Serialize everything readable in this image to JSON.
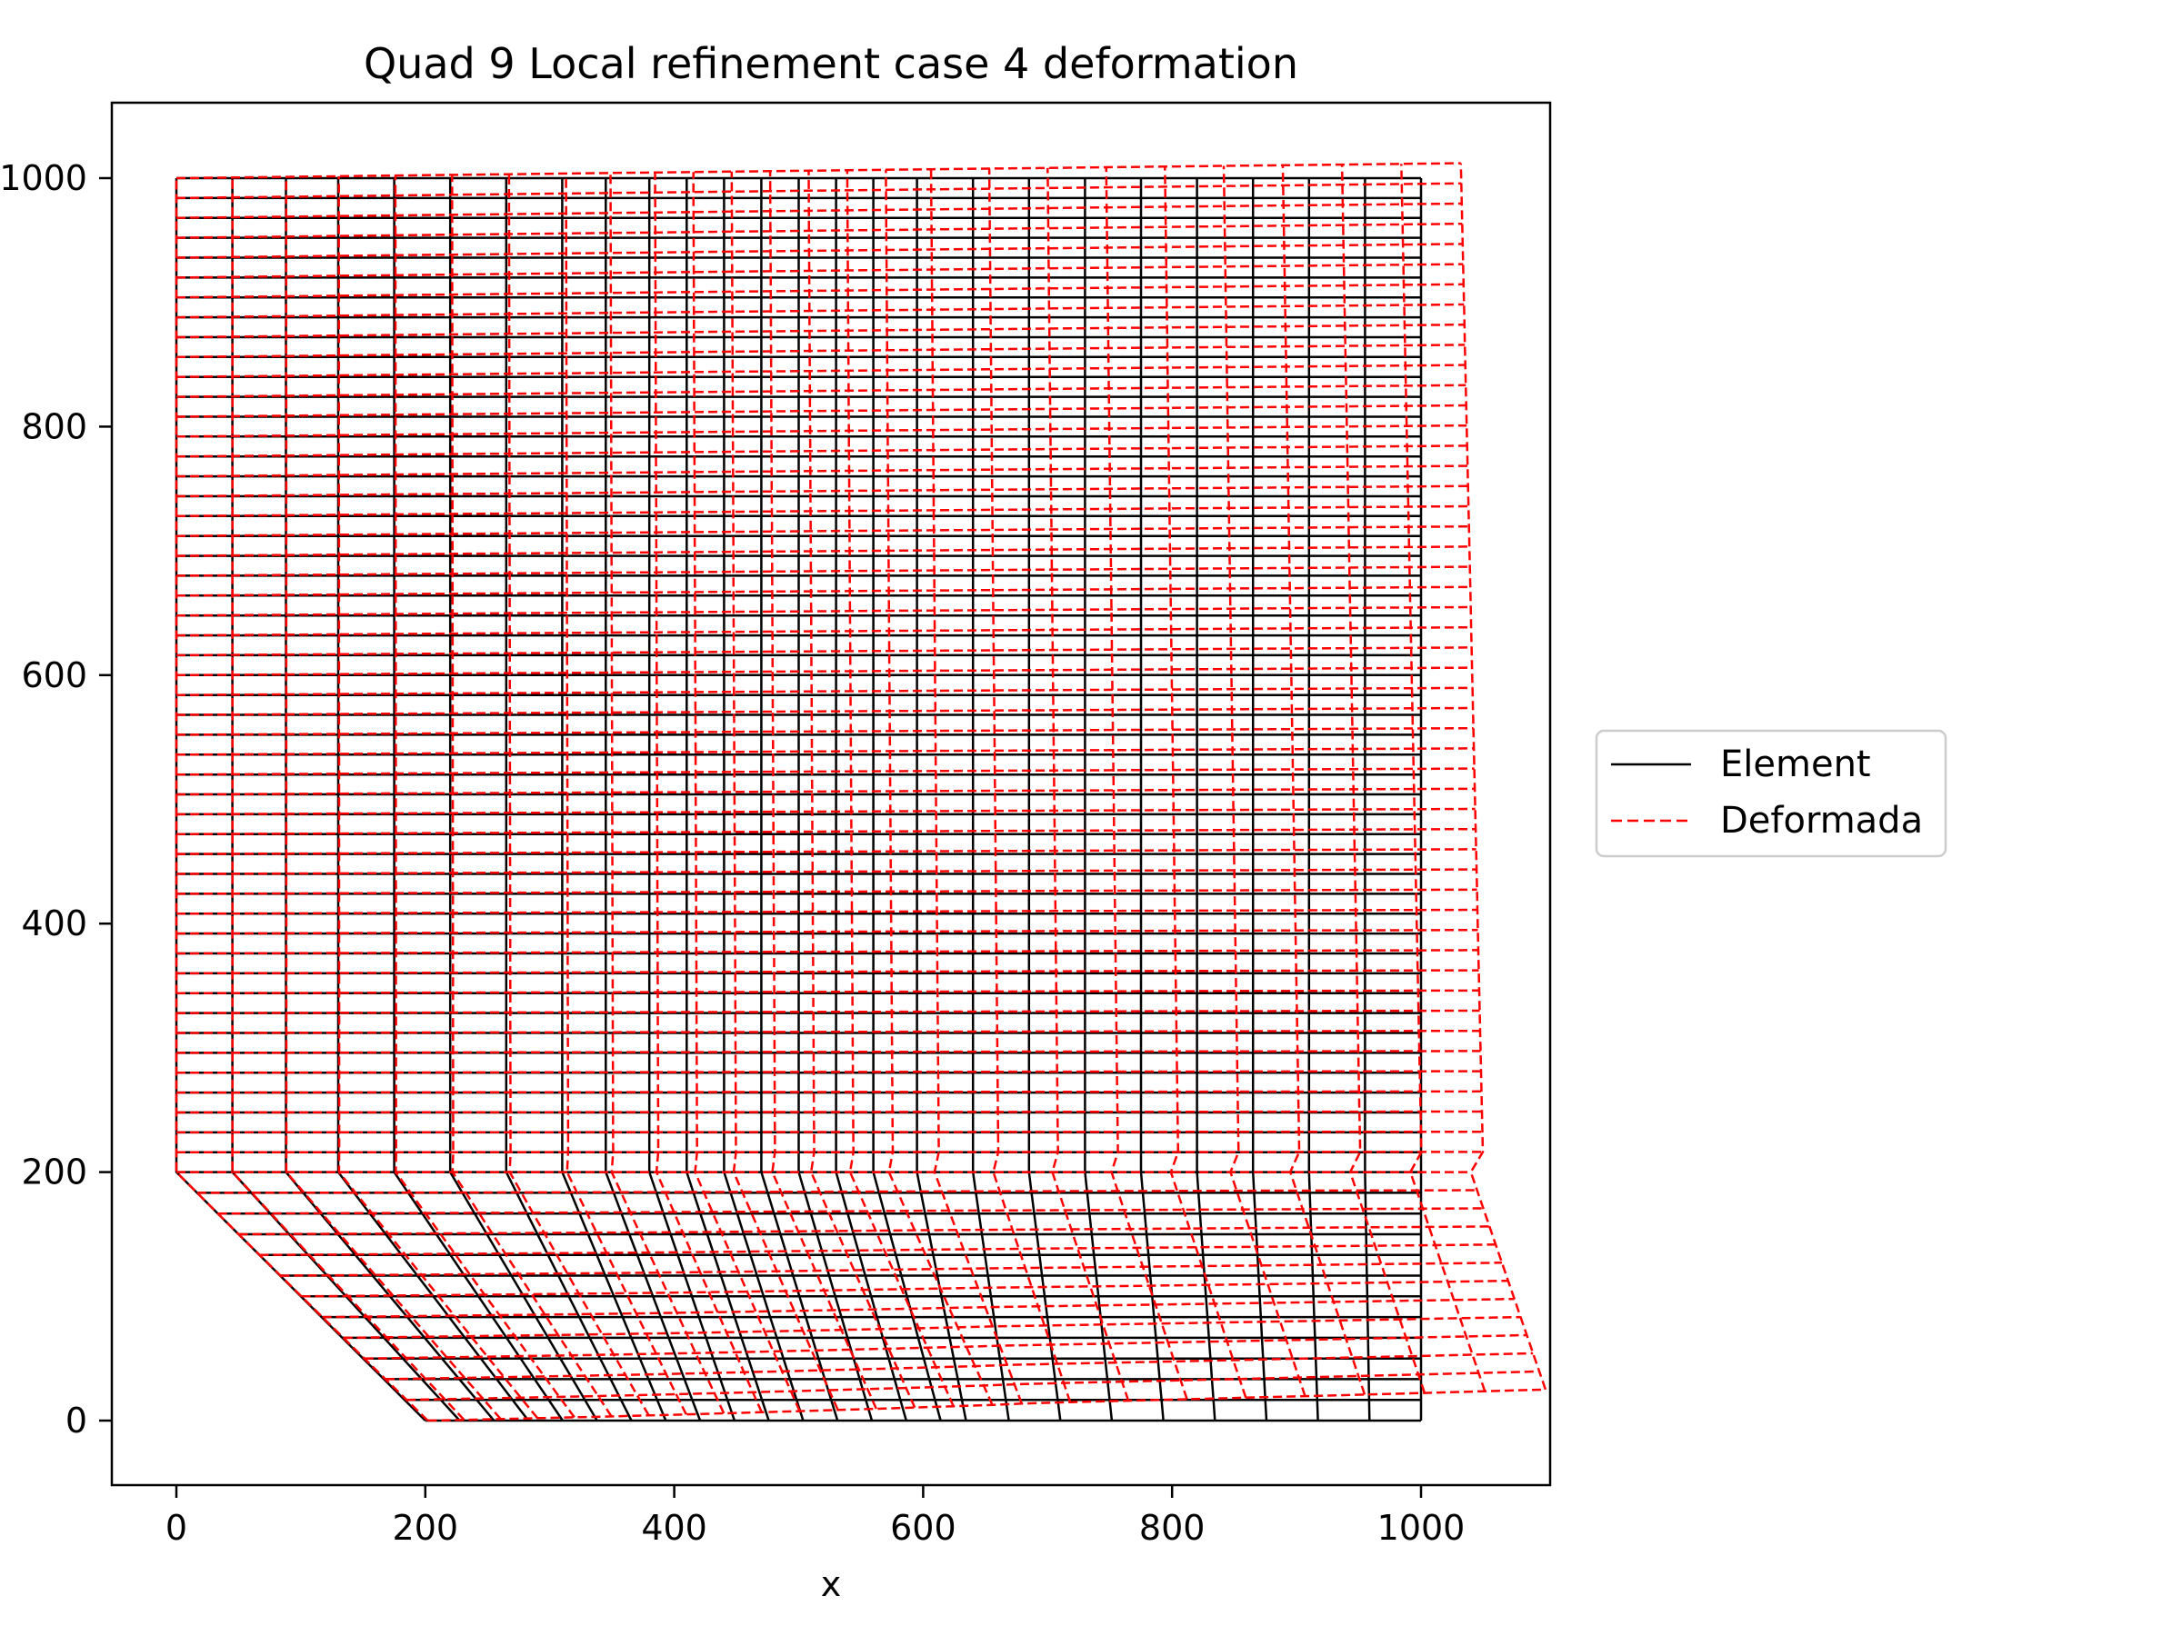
{
  "chart_data": {
    "type": "line",
    "title": "Quad 9 Local refinement case 4 deformation",
    "xlabel": "x",
    "ylabel": "",
    "xlim": [
      -52,
      1103
    ],
    "ylim": [
      -50,
      1060
    ],
    "xticks": [
      0,
      200,
      400,
      600,
      800,
      1000
    ],
    "yticks": [
      0,
      200,
      400,
      600,
      800,
      1000
    ],
    "xtick_labels": [
      "0",
      "200",
      "400",
      "600",
      "800",
      "1000"
    ],
    "ytick_labels": [
      "0",
      "200",
      "400",
      "600",
      "800",
      "1000"
    ],
    "grid": false,
    "legend_position": "center-right outside",
    "series": [
      {
        "name": "Element",
        "color": "#000000",
        "linestyle": "solid"
      },
      {
        "name": "Deformada",
        "color": "#ff0000",
        "linestyle": "dashed"
      }
    ],
    "mesh": {
      "outline_original": [
        [
          0,
          200
        ],
        [
          200,
          0
        ],
        [
          1000,
          0
        ],
        [
          1000,
          1000
        ],
        [
          0,
          1000
        ]
      ],
      "outline_deformed": [
        [
          0,
          200
        ],
        [
          225,
          15
        ],
        [
          1050,
          25
        ],
        [
          1032,
          1012
        ],
        [
          0,
          1000
        ]
      ],
      "fine_rows_lower_region": 12,
      "rows_upper_region": 50,
      "column_x_top": [
        0,
        45,
        88,
        130,
        175,
        220,
        265,
        310,
        345,
        380,
        410,
        440,
        470,
        500,
        530,
        560,
        595,
        640,
        685,
        730,
        775,
        820,
        865,
        910,
        955,
        1000
      ],
      "column_x_bottom": [
        200,
        230,
        260,
        290,
        320,
        350,
        380,
        410,
        440,
        470,
        500,
        530,
        560,
        590,
        620,
        640,
        685,
        730,
        775,
        820,
        865,
        910,
        955,
        1000
      ]
    }
  }
}
